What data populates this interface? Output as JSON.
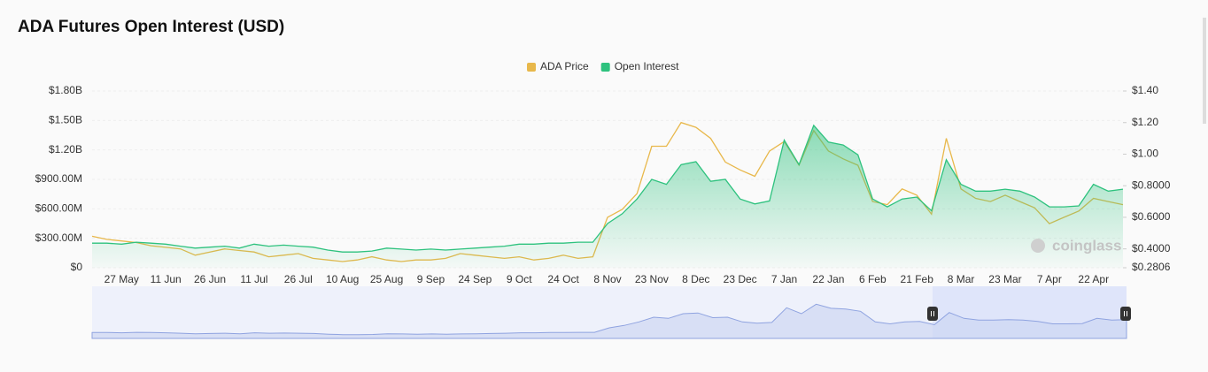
{
  "chart_data": {
    "type": "line",
    "title": "ADA Futures Open Interest (USD)",
    "watermark": "coinglass",
    "legend": "top",
    "grid": true,
    "categories": [
      null,
      null,
      "27 May",
      null,
      null,
      "11 Jun",
      null,
      null,
      "26 Jun",
      null,
      null,
      "11 Jul",
      null,
      null,
      "26 Jul",
      null,
      null,
      "10 Aug",
      null,
      null,
      "25 Aug",
      null,
      null,
      "9 Sep",
      null,
      null,
      "24 Sep",
      null,
      null,
      "9 Oct",
      null,
      null,
      "24 Oct",
      null,
      null,
      "8 Nov",
      null,
      null,
      "23 Nov",
      null,
      null,
      "8 Dec",
      null,
      null,
      "23 Dec",
      null,
      null,
      "7 Jan",
      null,
      null,
      "22 Jan",
      null,
      null,
      "6 Feb",
      null,
      null,
      "21 Feb",
      null,
      null,
      "8 Mar",
      null,
      null,
      "23 Mar",
      null,
      null,
      "7 Apr",
      null,
      null,
      "22 Apr",
      null,
      null
    ],
    "series": [
      {
        "name": "ADA Price",
        "color": "#e8b84b",
        "axis": "y2",
        "values": [
          0.48,
          0.46,
          0.45,
          0.44,
          0.42,
          0.41,
          0.4,
          0.36,
          0.38,
          0.4,
          0.39,
          0.38,
          0.35,
          0.36,
          0.37,
          0.34,
          0.33,
          0.32,
          0.33,
          0.35,
          0.33,
          0.32,
          0.33,
          0.33,
          0.34,
          0.37,
          0.36,
          0.35,
          0.34,
          0.35,
          0.33,
          0.34,
          0.36,
          0.34,
          0.35,
          0.6,
          0.65,
          0.75,
          1.05,
          1.05,
          1.2,
          1.17,
          1.1,
          0.95,
          0.9,
          0.86,
          1.02,
          1.08,
          0.93,
          1.15,
          1.02,
          0.97,
          0.93,
          0.7,
          0.68,
          0.78,
          0.74,
          0.62,
          1.1,
          0.78,
          0.72,
          0.7,
          0.74,
          0.7,
          0.66,
          0.56,
          0.6,
          0.64,
          0.72,
          0.7,
          0.68
        ]
      },
      {
        "name": "Open Interest",
        "color": "#2ec27e",
        "values": [
          250000000,
          250000000,
          240000000,
          260000000,
          250000000,
          240000000,
          220000000,
          200000000,
          210000000,
          220000000,
          200000000,
          240000000,
          220000000,
          230000000,
          220000000,
          210000000,
          180000000,
          160000000,
          160000000,
          170000000,
          200000000,
          190000000,
          180000000,
          190000000,
          180000000,
          190000000,
          200000000,
          210000000,
          220000000,
          240000000,
          240000000,
          250000000,
          250000000,
          260000000,
          260000000,
          450000000,
          550000000,
          700000000,
          900000000,
          850000000,
          1050000000,
          1080000000,
          880000000,
          900000000,
          700000000,
          650000000,
          680000000,
          1300000000,
          1050000000,
          1450000000,
          1280000000,
          1250000000,
          1150000000,
          700000000,
          620000000,
          700000000,
          720000000,
          580000000,
          1100000000,
          850000000,
          780000000,
          780000000,
          800000000,
          780000000,
          720000000,
          620000000,
          620000000,
          630000000,
          850000000,
          780000000,
          800000000
        ]
      }
    ],
    "ylim": [
      0,
      1800000000
    ],
    "yticks": [
      {
        "value": 0,
        "label": "$0"
      },
      {
        "value": 300000000,
        "label": "$300.00M"
      },
      {
        "value": 600000000,
        "label": "$600.00M"
      },
      {
        "value": 900000000,
        "label": "$900.00M"
      },
      {
        "value": 1200000000,
        "label": "$1.20B"
      },
      {
        "value": 1500000000,
        "label": "$1.50B"
      },
      {
        "value": 1800000000,
        "label": "$1.80B"
      }
    ],
    "y2lim": [
      0.2806,
      1.4
    ],
    "y2ticks": [
      {
        "value": 0.2806,
        "label": "$0.2806"
      },
      {
        "value": 0.4,
        "label": "$0.4000"
      },
      {
        "value": 0.6,
        "label": "$0.6000"
      },
      {
        "value": 0.8,
        "label": "$0.8000"
      },
      {
        "value": 1.0,
        "label": "$1.00"
      },
      {
        "value": 1.2,
        "label": "$1.20"
      },
      {
        "value": 1.4,
        "label": "$1.40"
      }
    ]
  }
}
